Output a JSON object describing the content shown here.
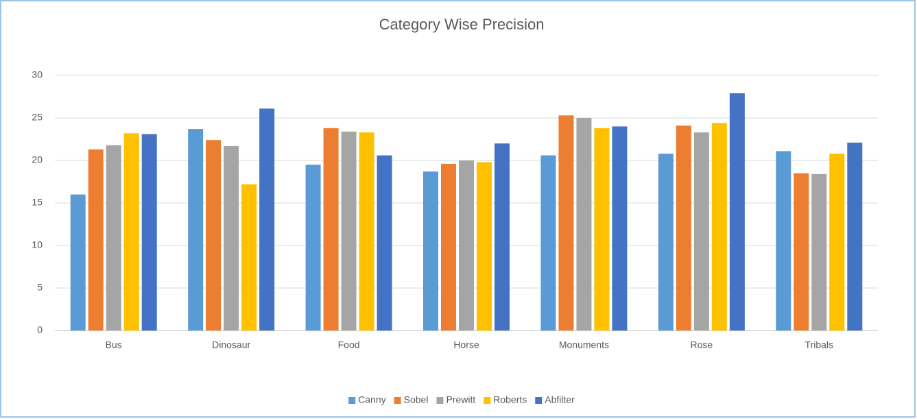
{
  "chart_data": {
    "type": "bar",
    "title": "Category Wise Precision",
    "categories": [
      "Bus",
      "Dinosaur",
      "Food",
      "Horse",
      "Monuments",
      "Rose",
      "Tribals"
    ],
    "series": [
      {
        "name": "Canny",
        "color": "#5b9bd5",
        "values": [
          16,
          23.7,
          19.5,
          18.7,
          20.6,
          20.8,
          21.1
        ]
      },
      {
        "name": "Sobel",
        "color": "#ed7d31",
        "values": [
          21.3,
          22.4,
          23.8,
          19.6,
          25.3,
          24.1,
          18.5
        ]
      },
      {
        "name": "Prewitt",
        "color": "#a5a5a5",
        "values": [
          21.8,
          21.7,
          23.4,
          20,
          25,
          23.3,
          18.4
        ]
      },
      {
        "name": "Roberts",
        "color": "#ffc000",
        "values": [
          23.2,
          17.2,
          23.3,
          19.8,
          23.8,
          24.4,
          20.8
        ]
      },
      {
        "name": "Abfilter",
        "color": "#4472c4",
        "values": [
          23.1,
          26.1,
          20.6,
          22,
          24,
          27.9,
          22.1
        ]
      }
    ],
    "ylim": [
      0,
      30
    ],
    "yticks": [
      0,
      5,
      10,
      15,
      20,
      25,
      30
    ],
    "grid": true,
    "legend": "bottom"
  }
}
